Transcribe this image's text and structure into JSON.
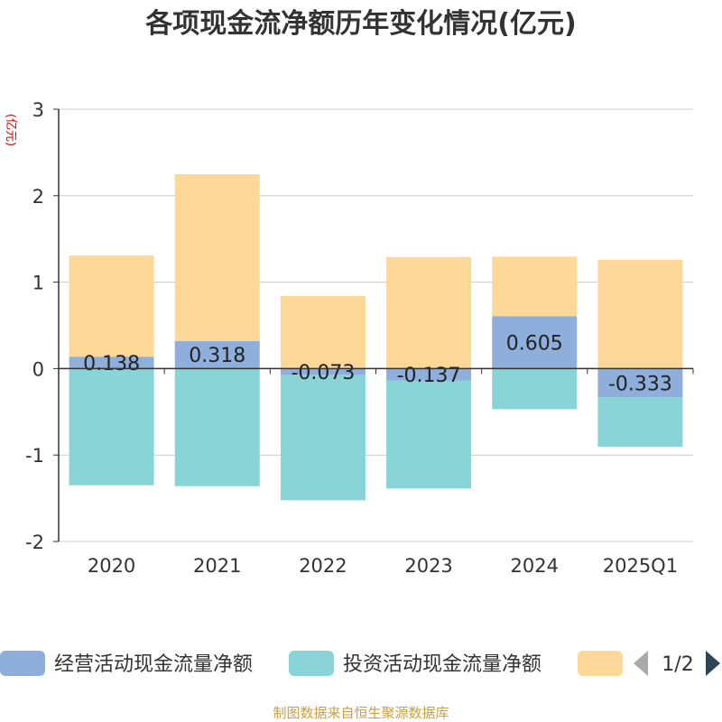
{
  "chart_data": {
    "type": "bar",
    "stacked": true,
    "title": "各项现金流净额历年变化情况(亿元)",
    "ylabel": "(亿元)",
    "xlabel": "",
    "ylim": [
      -2,
      3
    ],
    "yticks": [
      -2,
      -1,
      0,
      1,
      2,
      3
    ],
    "categories": [
      "2020",
      "2021",
      "2022",
      "2023",
      "2024",
      "2025Q1"
    ],
    "series": [
      {
        "name": "经营活动现金流量净额",
        "color": "#8eaedb",
        "values": [
          0.138,
          0.318,
          -0.073,
          -0.137,
          0.605,
          -0.333
        ],
        "labels": [
          "0.138",
          "0.318",
          "-0.073",
          "-0.137",
          "0.605",
          "-0.333"
        ]
      },
      {
        "name": "投资活动现金流量净额",
        "color": "#88d4d7",
        "values": [
          -1.35,
          -1.36,
          -1.45,
          -1.25,
          -0.47,
          -0.57
        ]
      },
      {
        "name": "",
        "color": "#fdd899",
        "values": [
          1.17,
          1.93,
          0.84,
          1.29,
          0.69,
          1.26
        ]
      }
    ],
    "legend": {
      "position": "bottom",
      "page_indicator": "1/2"
    },
    "grid": true,
    "source_note": "制图数据来自恒生聚源数据库"
  }
}
